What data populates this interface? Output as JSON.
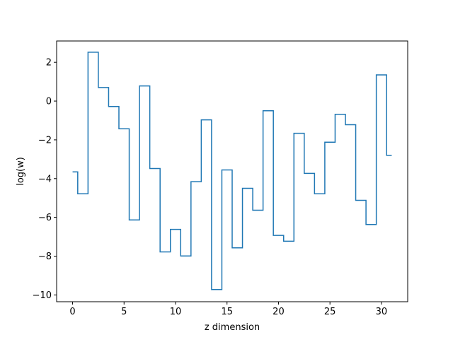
{
  "chart_data": {
    "type": "line",
    "drawstyle": "steps-mid",
    "title": "",
    "xlabel": "z dimension",
    "ylabel": "log(w)",
    "xlim": [
      -1.55,
      32.55
    ],
    "ylim": [
      -10.35,
      3.1
    ],
    "xticks": [
      0,
      5,
      10,
      15,
      20,
      25,
      30
    ],
    "yticks": [
      2,
      0,
      -2,
      -4,
      -6,
      -8,
      -10
    ],
    "xticklabels": [
      "0",
      "5",
      "10",
      "15",
      "20",
      "25",
      "30"
    ],
    "yticklabels": [
      "2",
      "0",
      "−2",
      "−4",
      "−6",
      "−8",
      "−10"
    ],
    "grid": false,
    "legend": "none",
    "line_color": "#1f77b4",
    "series": [
      {
        "x": [
          0,
          1,
          2,
          3,
          4,
          5,
          6,
          7,
          8,
          9,
          10,
          11,
          12,
          13,
          14,
          15,
          16,
          17,
          18,
          19,
          20,
          21,
          22,
          23,
          24,
          25,
          26,
          27,
          28,
          29,
          30,
          31
        ],
        "values": [
          -3.65,
          -4.78,
          2.52,
          0.7,
          -0.28,
          -1.43,
          -6.13,
          0.78,
          -3.48,
          -7.78,
          -6.62,
          -7.99,
          -4.16,
          -0.97,
          -9.72,
          -3.55,
          -7.57,
          -4.5,
          -5.63,
          -0.5,
          -6.93,
          -7.23,
          -1.66,
          -3.73,
          -4.78,
          -2.12,
          -0.68,
          -1.22,
          -5.12,
          -6.37,
          1.35,
          -2.8
        ]
      }
    ]
  }
}
